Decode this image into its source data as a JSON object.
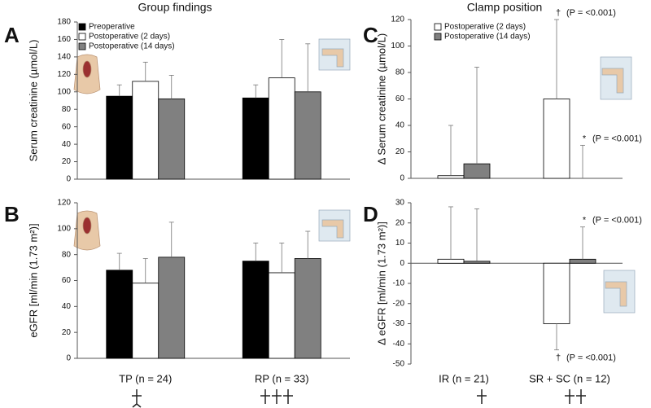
{
  "headings": {
    "left": "Group findings",
    "right": "Clamp position"
  },
  "chart_data": [
    {
      "type": "bar",
      "label": "A",
      "ylabel": "Serum creatinine (µmol/L)",
      "ylim": [
        0,
        180
      ],
      "yticks": [
        0,
        20,
        40,
        60,
        80,
        100,
        120,
        140,
        160,
        180
      ],
      "legend": "upper left",
      "series": [
        {
          "name": "Preoperative",
          "color": "#000000",
          "values": [
            95,
            93
          ],
          "errors": [
            13,
            15
          ]
        },
        {
          "name": "Postoperative (2 days)",
          "color": "#ffffff",
          "values": [
            112,
            116
          ],
          "errors": [
            22,
            44
          ]
        },
        {
          "name": "Postoperative (14 days)",
          "color": "#808080",
          "values": [
            92,
            100
          ],
          "errors": [
            27,
            55
          ]
        }
      ]
    },
    {
      "type": "bar",
      "label": "B",
      "ylabel": "eGFR [ml/min (1.73 m²)]",
      "categories": [
        "TP (n = 24)",
        "RP (n = 33)"
      ],
      "ylim": [
        0,
        120
      ],
      "yticks": [
        0,
        20,
        40,
        60,
        80,
        100,
        120
      ],
      "series": [
        {
          "color": "#000000",
          "values": [
            68,
            75
          ],
          "errors": [
            13,
            14
          ]
        },
        {
          "color": "#ffffff",
          "values": [
            58,
            66
          ],
          "errors": [
            19,
            23
          ]
        },
        {
          "color": "#808080",
          "values": [
            78,
            77
          ],
          "errors": [
            27,
            21
          ]
        }
      ]
    },
    {
      "type": "bar",
      "label": "C",
      "ylabel": "Δ Serum creatinine (µmol/L)",
      "ylim": [
        0,
        120
      ],
      "yticks": [
        0,
        20,
        40,
        60,
        80,
        100,
        120
      ],
      "legend": "upper left",
      "series": [
        {
          "name": "Postoperative (2 days)",
          "color": "#ffffff",
          "values": [
            2,
            60
          ],
          "errors": [
            38,
            60
          ],
          "annotations": [
            null,
            {
              "symbol": "†",
              "text": "(P = <0.001)"
            }
          ]
        },
        {
          "name": "Postoperative (14 days)",
          "color": "#808080",
          "values": [
            11,
            0
          ],
          "errors": [
            73,
            25
          ],
          "annotations": [
            null,
            {
              "symbol": "*",
              "text": "(P = <0.001)"
            }
          ]
        }
      ]
    },
    {
      "type": "bar",
      "label": "D",
      "ylabel": "Δ eGFR [ml/min (1.73 m²)]",
      "categories": [
        "IR (n = 21)",
        "SR + SC (n = 12)"
      ],
      "ylim": [
        -50,
        30
      ],
      "yticks": [
        -50,
        -40,
        -30,
        -20,
        -10,
        0,
        10,
        20,
        30
      ],
      "series": [
        {
          "color": "#ffffff",
          "values": [
            2,
            -30
          ],
          "errors": [
            26,
            13
          ],
          "annotations": [
            null,
            {
              "symbol": "†",
              "text": "(P = <0.001)"
            }
          ]
        },
        {
          "color": "#808080",
          "values": [
            1,
            2
          ],
          "errors": [
            26,
            16
          ],
          "annotations": [
            null,
            {
              "symbol": "*",
              "text": "(P = <0.001)"
            }
          ]
        }
      ]
    }
  ]
}
